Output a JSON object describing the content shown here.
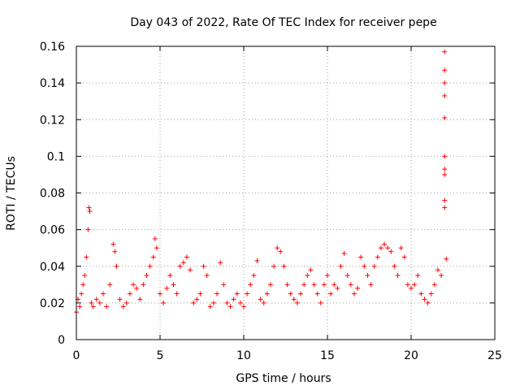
{
  "chart_data": {
    "type": "scatter",
    "title": "Day 043 of 2022, Rate Of TEC Index for receiver pepe",
    "xlabel": "GPS time / hours",
    "ylabel": "ROTI / TECUs",
    "xlim": [
      0,
      25
    ],
    "ylim": [
      0,
      0.16
    ],
    "xticks": [
      "0",
      "5",
      "10",
      "15",
      "20",
      "25"
    ],
    "yticks": [
      "0",
      "0.02",
      "0.04",
      "0.06",
      "0.08",
      "0.1",
      "0.12",
      "0.14",
      "0.16"
    ],
    "grid": true,
    "marker": "plus",
    "color": "#ff0000",
    "series": [
      {
        "x": [
          0.0,
          0.1,
          0.2,
          0.3,
          0.4,
          0.5,
          0.6,
          0.7,
          0.75,
          0.8,
          0.9,
          1.0,
          1.2,
          1.4,
          1.6,
          1.8,
          2.0,
          2.2,
          2.3,
          2.4,
          2.6,
          2.8,
          3.0,
          3.2,
          3.4,
          3.6,
          3.8,
          4.0,
          4.2,
          4.4,
          4.6,
          4.7,
          4.8,
          5.0,
          5.2,
          5.4,
          5.6,
          5.8,
          6.0,
          6.2,
          6.4,
          6.6,
          6.8,
          7.0,
          7.2,
          7.4,
          7.6,
          7.8,
          8.0,
          8.2,
          8.4,
          8.6,
          8.8,
          9.0,
          9.2,
          9.4,
          9.6,
          9.8,
          10.0,
          10.2,
          10.4,
          10.6,
          10.8,
          11.0,
          11.2,
          11.4,
          11.6,
          11.8,
          12.0,
          12.2,
          12.4,
          12.6,
          12.8,
          13.0,
          13.2,
          13.4,
          13.6,
          13.8,
          14.0,
          14.2,
          14.4,
          14.6,
          14.8,
          15.0,
          15.2,
          15.4,
          15.6,
          15.8,
          16.0,
          16.2,
          16.4,
          16.6,
          16.8,
          17.0,
          17.2,
          17.4,
          17.6,
          17.8,
          18.0,
          18.2,
          18.4,
          18.6,
          18.8,
          19.0,
          19.2,
          19.4,
          19.6,
          19.8,
          20.0,
          20.2,
          20.4,
          20.6,
          20.8,
          21.0,
          21.2,
          21.4,
          21.6,
          21.8,
          22.0,
          22.0,
          22.0,
          22.0,
          22.0,
          22.0,
          22.0,
          22.0,
          22.0,
          22.0,
          22.1
        ],
        "y": [
          0.015,
          0.022,
          0.018,
          0.025,
          0.03,
          0.035,
          0.045,
          0.06,
          0.072,
          0.07,
          0.02,
          0.018,
          0.022,
          0.02,
          0.025,
          0.018,
          0.03,
          0.052,
          0.048,
          0.04,
          0.022,
          0.018,
          0.02,
          0.025,
          0.03,
          0.028,
          0.022,
          0.03,
          0.035,
          0.04,
          0.045,
          0.055,
          0.05,
          0.025,
          0.02,
          0.028,
          0.035,
          0.03,
          0.025,
          0.04,
          0.042,
          0.045,
          0.038,
          0.02,
          0.022,
          0.025,
          0.04,
          0.035,
          0.018,
          0.02,
          0.025,
          0.042,
          0.03,
          0.02,
          0.018,
          0.022,
          0.025,
          0.02,
          0.018,
          0.025,
          0.03,
          0.035,
          0.043,
          0.022,
          0.02,
          0.025,
          0.03,
          0.04,
          0.05,
          0.048,
          0.04,
          0.03,
          0.025,
          0.022,
          0.02,
          0.025,
          0.03,
          0.035,
          0.038,
          0.03,
          0.025,
          0.02,
          0.03,
          0.035,
          0.025,
          0.03,
          0.028,
          0.04,
          0.047,
          0.035,
          0.03,
          0.025,
          0.028,
          0.045,
          0.04,
          0.035,
          0.03,
          0.04,
          0.045,
          0.05,
          0.052,
          0.05,
          0.048,
          0.04,
          0.035,
          0.05,
          0.045,
          0.03,
          0.028,
          0.03,
          0.035,
          0.025,
          0.022,
          0.02,
          0.025,
          0.03,
          0.038,
          0.035,
          0.157,
          0.147,
          0.14,
          0.133,
          0.121,
          0.1,
          0.093,
          0.09,
          0.076,
          0.072,
          0.044
        ]
      }
    ]
  }
}
